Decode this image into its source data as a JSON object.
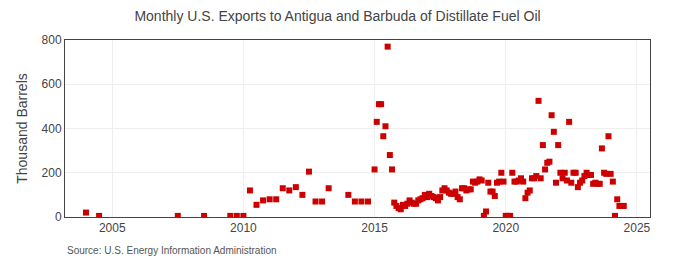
{
  "chart_data": {
    "type": "scatter",
    "title": "Monthly U.S. Exports to Antigua and Barbuda of Distillate Fuel Oil",
    "y_label": "Thousand Barrels",
    "annotations": [
      "Source: U.S. Energy Information Administration"
    ],
    "color": "#cc0000",
    "marker": "square",
    "grid": true,
    "xlim": [
      2003.2,
      2025.5
    ],
    "ylim": [
      0,
      800
    ],
    "xticks": [
      2005,
      2010,
      2015,
      2020,
      2025
    ],
    "yticks": [
      0,
      200,
      400,
      600,
      800
    ],
    "x": [
      2004.0,
      2004.5,
      2007.5,
      2008.5,
      2009.5,
      2009.75,
      2010.0,
      2010.25,
      2010.5,
      2010.75,
      2011.0,
      2011.25,
      2011.5,
      2011.75,
      2012.0,
      2012.25,
      2012.5,
      2012.75,
      2013.0,
      2013.25,
      2014.0,
      2014.25,
      2014.5,
      2014.75,
      2015.0,
      2015.0833,
      2015.1667,
      2015.25,
      2015.3333,
      2015.4167,
      2015.5,
      2015.5833,
      2015.6667,
      2015.75,
      2015.8333,
      2015.9167,
      2016.0,
      2016.0833,
      2016.1667,
      2016.25,
      2016.3333,
      2016.4167,
      2016.5,
      2016.5833,
      2016.6667,
      2016.75,
      2016.8333,
      2016.9167,
      2017.0,
      2017.0833,
      2017.1667,
      2017.25,
      2017.3333,
      2017.4167,
      2017.5,
      2017.5833,
      2017.6667,
      2017.75,
      2017.8333,
      2017.9167,
      2018.0,
      2018.0833,
      2018.1667,
      2018.25,
      2018.3333,
      2018.4167,
      2018.5,
      2018.5833,
      2018.6667,
      2018.75,
      2018.8333,
      2018.9167,
      2019.0,
      2019.0833,
      2019.1667,
      2019.25,
      2019.3333,
      2019.4167,
      2019.5,
      2019.5833,
      2019.6667,
      2019.75,
      2019.8333,
      2019.9167,
      2020.0,
      2020.0833,
      2020.1667,
      2020.25,
      2020.3333,
      2020.4167,
      2020.5,
      2020.5833,
      2020.6667,
      2020.75,
      2020.8333,
      2020.9167,
      2021.0,
      2021.0833,
      2021.1667,
      2021.25,
      2021.3333,
      2021.4167,
      2021.5,
      2021.5833,
      2021.6667,
      2021.75,
      2021.8333,
      2021.9167,
      2022.0,
      2022.0833,
      2022.1667,
      2022.25,
      2022.3333,
      2022.4167,
      2022.5,
      2022.5833,
      2022.6667,
      2022.75,
      2022.8333,
      2022.9167,
      2023.0,
      2023.0833,
      2023.1667,
      2023.25,
      2023.3333,
      2023.4167,
      2023.5,
      2023.5833,
      2023.6667,
      2023.75,
      2023.8333,
      2023.9167,
      2024.0,
      2024.0833,
      2024.1667,
      2024.25,
      2024.3333,
      2024.4167,
      2024.5
    ],
    "values": [
      20,
      5,
      5,
      5,
      5,
      5,
      5,
      120,
      55,
      75,
      80,
      80,
      130,
      120,
      135,
      100,
      205,
      70,
      70,
      130,
      100,
      70,
      70,
      70,
      215,
      430,
      510,
      510,
      365,
      410,
      770,
      280,
      215,
      65,
      50,
      40,
      35,
      55,
      50,
      60,
      75,
      65,
      60,
      60,
      75,
      80,
      85,
      100,
      90,
      105,
      95,
      90,
      85,
      75,
      90,
      120,
      130,
      120,
      110,
      105,
      105,
      115,
      90,
      80,
      130,
      130,
      120,
      125,
      125,
      160,
      155,
      160,
      170,
      165,
      5,
      25,
      155,
      115,
      115,
      95,
      155,
      160,
      200,
      160,
      5,
      5,
      5,
      200,
      160,
      160,
      165,
      175,
      160,
      85,
      110,
      120,
      175,
      175,
      185,
      525,
      175,
      325,
      215,
      245,
      250,
      460,
      385,
      155,
      325,
      200,
      175,
      200,
      165,
      430,
      155,
      200,
      200,
      135,
      155,
      165,
      185,
      200,
      190,
      190,
      150,
      155,
      150,
      150,
      310,
      200,
      195,
      365,
      195,
      160,
      5,
      80,
      50,
      50,
      50
    ]
  }
}
